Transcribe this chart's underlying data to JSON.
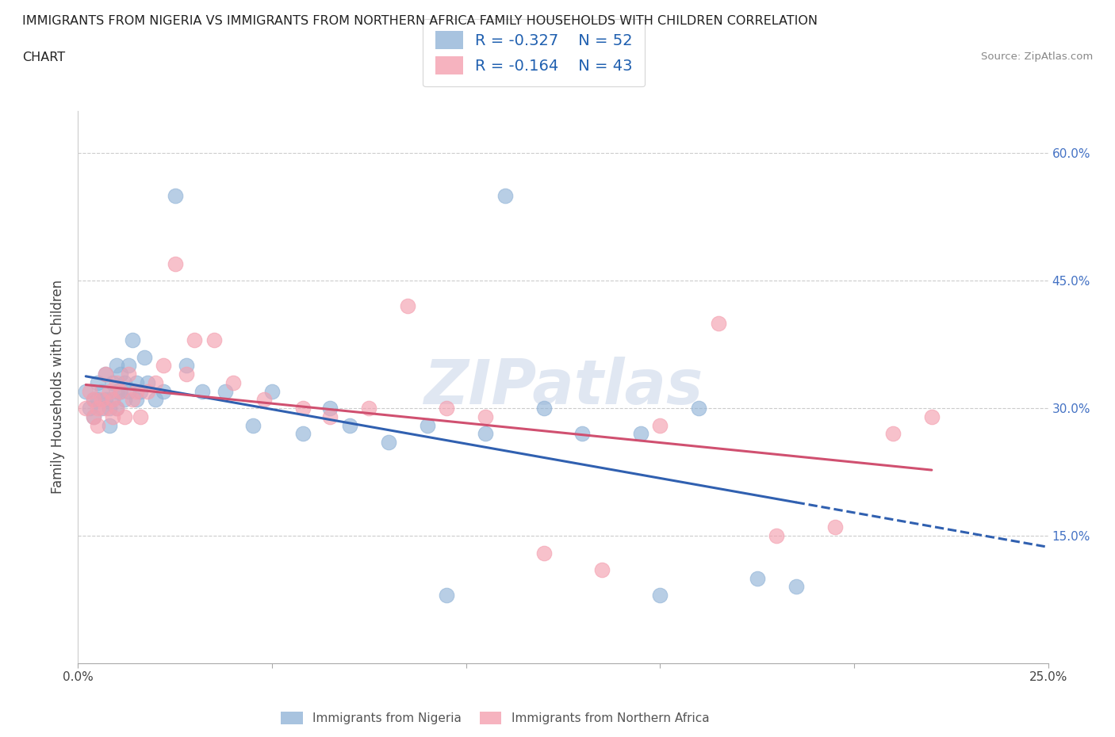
{
  "title_line1": "IMMIGRANTS FROM NIGERIA VS IMMIGRANTS FROM NORTHERN AFRICA FAMILY HOUSEHOLDS WITH CHILDREN CORRELATION",
  "title_line2": "CHART",
  "source": "Source: ZipAtlas.com",
  "ylabel": "Family Households with Children",
  "xlim": [
    0.0,
    0.25
  ],
  "ylim": [
    0.0,
    0.65
  ],
  "x_ticks": [
    0.0,
    0.05,
    0.1,
    0.15,
    0.2,
    0.25
  ],
  "x_tick_labels": [
    "0.0%",
    "",
    "",
    "",
    "",
    "25.0%"
  ],
  "y_ticks": [
    0.15,
    0.3,
    0.45,
    0.6
  ],
  "y_tick_labels": [
    "15.0%",
    "30.0%",
    "45.0%",
    "60.0%"
  ],
  "nigeria_color": "#92b4d7",
  "northern_africa_color": "#f4a0b0",
  "nigeria_line_color": "#3060b0",
  "northern_africa_line_color": "#d05070",
  "nigeria_R": -0.327,
  "nigeria_N": 52,
  "northern_africa_R": -0.164,
  "northern_africa_N": 43,
  "legend_label_nigeria": "Immigrants from Nigeria",
  "legend_label_northern_africa": "Immigrants from Northern Africa",
  "watermark": "ZIPatlas",
  "nigeria_x": [
    0.002,
    0.003,
    0.004,
    0.004,
    0.005,
    0.005,
    0.006,
    0.006,
    0.007,
    0.007,
    0.008,
    0.008,
    0.009,
    0.009,
    0.01,
    0.01,
    0.01,
    0.011,
    0.011,
    0.012,
    0.012,
    0.013,
    0.013,
    0.014,
    0.015,
    0.015,
    0.016,
    0.017,
    0.018,
    0.02,
    0.022,
    0.025,
    0.028,
    0.032,
    0.038,
    0.045,
    0.05,
    0.058,
    0.065,
    0.07,
    0.08,
    0.09,
    0.095,
    0.105,
    0.11,
    0.12,
    0.13,
    0.145,
    0.15,
    0.16,
    0.175,
    0.185
  ],
  "nigeria_y": [
    0.32,
    0.3,
    0.31,
    0.29,
    0.31,
    0.33,
    0.3,
    0.32,
    0.31,
    0.34,
    0.3,
    0.28,
    0.31,
    0.33,
    0.32,
    0.3,
    0.35,
    0.32,
    0.34,
    0.31,
    0.33,
    0.35,
    0.32,
    0.38,
    0.33,
    0.31,
    0.32,
    0.36,
    0.33,
    0.31,
    0.32,
    0.55,
    0.35,
    0.32,
    0.32,
    0.28,
    0.32,
    0.27,
    0.3,
    0.28,
    0.26,
    0.28,
    0.08,
    0.27,
    0.55,
    0.3,
    0.27,
    0.27,
    0.08,
    0.3,
    0.1,
    0.09
  ],
  "northern_africa_x": [
    0.002,
    0.003,
    0.004,
    0.004,
    0.005,
    0.005,
    0.006,
    0.007,
    0.007,
    0.008,
    0.009,
    0.009,
    0.01,
    0.01,
    0.011,
    0.012,
    0.013,
    0.014,
    0.015,
    0.016,
    0.018,
    0.02,
    0.022,
    0.025,
    0.028,
    0.03,
    0.035,
    0.04,
    0.048,
    0.058,
    0.065,
    0.075,
    0.085,
    0.095,
    0.105,
    0.12,
    0.135,
    0.15,
    0.165,
    0.18,
    0.195,
    0.21,
    0.22
  ],
  "northern_africa_y": [
    0.3,
    0.32,
    0.31,
    0.29,
    0.28,
    0.3,
    0.31,
    0.34,
    0.3,
    0.32,
    0.29,
    0.31,
    0.3,
    0.33,
    0.32,
    0.29,
    0.34,
    0.31,
    0.32,
    0.29,
    0.32,
    0.33,
    0.35,
    0.47,
    0.34,
    0.38,
    0.38,
    0.33,
    0.31,
    0.3,
    0.29,
    0.3,
    0.42,
    0.3,
    0.29,
    0.13,
    0.11,
    0.28,
    0.4,
    0.15,
    0.16,
    0.27,
    0.29
  ]
}
